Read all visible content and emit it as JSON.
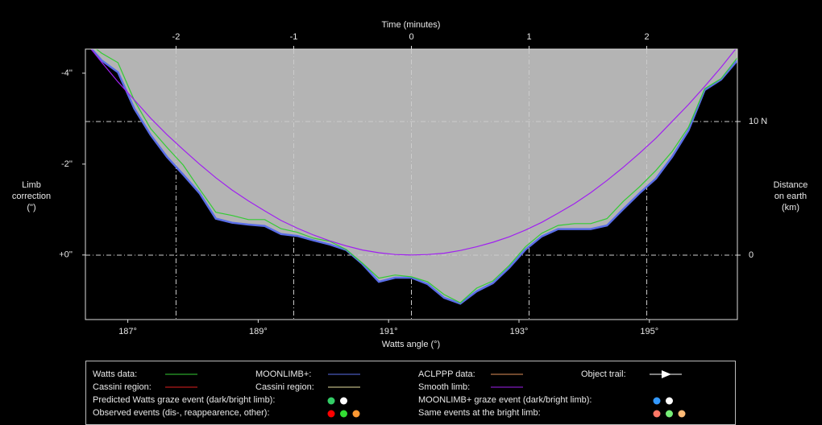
{
  "chart_data": {
    "type": "line",
    "x_axis_label": "Watts angle (°)",
    "x2_axis_label": "Time (minutes)",
    "y_axis_label": [
      "Limb",
      "correction",
      "(\")"
    ],
    "y2_axis_label": [
      "Distance",
      "on earth",
      "(km)"
    ],
    "x": [
      186.35,
      186.6,
      186.85,
      187.1,
      187.35,
      187.6,
      187.85,
      188.1,
      188.35,
      188.6,
      188.85,
      189.1,
      189.35,
      189.6,
      189.85,
      190.1,
      190.35,
      190.6,
      190.85,
      191.1,
      191.35,
      191.6,
      191.85,
      192.1,
      192.35,
      192.6,
      192.85,
      193.1,
      193.35,
      193.6,
      193.85,
      194.1,
      194.35,
      194.6,
      194.85,
      195.1,
      195.35,
      195.6,
      195.85,
      196.1,
      196.35
    ],
    "series": [
      {
        "name": "MOONLIMB+:",
        "color": "#5a6ee8",
        "fill": "#b4b4b4",
        "values": [
          -4.69,
          -4.28,
          -4.02,
          -3.22,
          -2.64,
          -2.16,
          -1.77,
          -1.36,
          -0.8,
          -0.71,
          -0.67,
          -0.64,
          -0.46,
          -0.42,
          -0.32,
          -0.23,
          -0.11,
          0.2,
          0.59,
          0.5,
          0.5,
          0.64,
          0.94,
          1.07,
          0.8,
          0.62,
          0.28,
          -0.12,
          -0.41,
          -0.57,
          -0.57,
          -0.57,
          -0.65,
          -1.01,
          -1.36,
          -1.68,
          -2.16,
          -2.74,
          -3.63,
          -3.86,
          -4.28
        ]
      },
      {
        "name": "Watts data:",
        "color": "#33cc33",
        "values": [
          -4.72,
          -4.44,
          -4.23,
          -3.4,
          -2.78,
          -2.37,
          -1.98,
          -1.45,
          -0.94,
          -0.87,
          -0.78,
          -0.78,
          -0.58,
          -0.5,
          -0.37,
          -0.3,
          -0.12,
          0.18,
          0.51,
          0.44,
          0.48,
          0.59,
          0.87,
          1.05,
          0.73,
          0.57,
          0.23,
          -0.18,
          -0.48,
          -0.65,
          -0.69,
          -0.69,
          -0.8,
          -1.18,
          -1.5,
          -1.86,
          -2.28,
          -2.81,
          -3.66,
          -3.88,
          -4.34
        ]
      },
      {
        "name": "Smooth limb:",
        "color": "#a020f0",
        "values": [
          -4.69,
          -4.24,
          -3.81,
          -3.41,
          -3.01,
          -2.65,
          -2.32,
          -2.0,
          -1.7,
          -1.43,
          -1.19,
          -0.97,
          -0.76,
          -0.59,
          -0.44,
          -0.31,
          -0.2,
          -0.11,
          -0.05,
          -0.01,
          0,
          -0.01,
          -0.04,
          -0.1,
          -0.18,
          -0.28,
          -0.4,
          -0.55,
          -0.72,
          -0.92,
          -1.13,
          -1.37,
          -1.64,
          -1.93,
          -2.24,
          -2.57,
          -2.94,
          -3.31,
          -3.71,
          -4.13,
          -4.58
        ]
      }
    ],
    "xlim": [
      186.35,
      196.35
    ],
    "xticks": [
      {
        "value": 187,
        "label": "187°"
      },
      {
        "value": 189,
        "label": "189°"
      },
      {
        "value": 191,
        "label": "191°"
      },
      {
        "value": 193,
        "label": "193°"
      },
      {
        "value": 195,
        "label": "195°"
      }
    ],
    "x2lim": [
      -2.77,
      2.77
    ],
    "x2ticks": [
      -2,
      -1,
      0,
      1,
      2
    ],
    "ylim": [
      -4.53,
      1.42
    ],
    "y_inverted": true,
    "yticks": [
      {
        "value": -4,
        "label": "-4''"
      },
      {
        "value": -2,
        "label": "-2''"
      },
      {
        "value": 0,
        "label": "+0''"
      }
    ],
    "y2lim": [
      -4.82,
      15.42
    ],
    "y2ticks": [
      {
        "value": 10,
        "label": "10 N"
      },
      0
    ],
    "grid_axes": [
      "x2",
      "y2"
    ],
    "legend": {
      "lines": [
        {
          "label": "Watts data:",
          "color": "#33cc33"
        },
        {
          "label": "MOONLIMB+:",
          "color": "#5a6ee8"
        },
        {
          "label": "ACLPPP data:",
          "color": "#e0905a"
        },
        {
          "label": "Object trail:",
          "color": "#ffffff"
        },
        {
          "label": "Cassini region:",
          "color": "#e02020"
        },
        {
          "label": "Cassini region:",
          "color": "#e8e0a0"
        },
        {
          "label": "Smooth limb:",
          "color": "#a020f0"
        }
      ],
      "events": [
        {
          "label": "Predicted Watts graze event (dark/bright limb):",
          "colors": [
            "#33cc66",
            "#ffffff"
          ]
        },
        {
          "label": "MOONLIMB+ graze event (dark/bright limb):",
          "colors": [
            "#3399ff",
            "#ffffff"
          ]
        },
        {
          "label": "Observed events (dis-, reappearence, other):",
          "colors": [
            "#ff0000",
            "#33dd33",
            "#ff9933"
          ]
        },
        {
          "label": "Same events at the bright limb:",
          "colors": [
            "#ff7766",
            "#77ee77",
            "#ffbb77"
          ]
        }
      ]
    }
  }
}
